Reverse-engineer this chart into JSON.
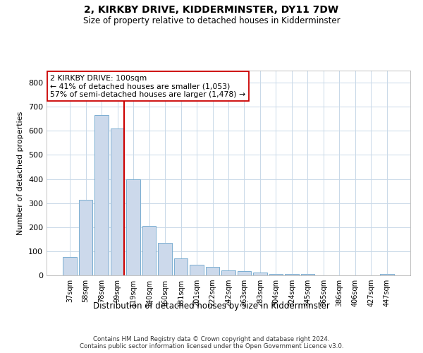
{
  "title": "2, KIRKBY DRIVE, KIDDERMINSTER, DY11 7DW",
  "subtitle": "Size of property relative to detached houses in Kidderminster",
  "xlabel": "Distribution of detached houses by size in Kidderminster",
  "ylabel": "Number of detached properties",
  "footer_line1": "Contains HM Land Registry data © Crown copyright and database right 2024.",
  "footer_line2": "Contains public sector information licensed under the Open Government Licence v3.0.",
  "annotation_title": "2 KIRKBY DRIVE: 100sqm",
  "annotation_line1": "← 41% of detached houses are smaller (1,053)",
  "annotation_line2": "57% of semi-detached houses are larger (1,478) →",
  "bar_color": "#ccd9eb",
  "bar_edge_color": "#7baed1",
  "vline_color": "#cc0000",
  "annotation_box_edge": "#cc0000",
  "background_color": "#ffffff",
  "grid_color": "#c8d8e8",
  "categories": [
    "37sqm",
    "58sqm",
    "78sqm",
    "99sqm",
    "119sqm",
    "140sqm",
    "160sqm",
    "181sqm",
    "201sqm",
    "222sqm",
    "242sqm",
    "263sqm",
    "283sqm",
    "304sqm",
    "324sqm",
    "345sqm",
    "365sqm",
    "386sqm",
    "406sqm",
    "427sqm",
    "447sqm"
  ],
  "values": [
    75,
    315,
    665,
    610,
    400,
    205,
    135,
    70,
    45,
    35,
    20,
    18,
    12,
    5,
    5,
    5,
    0,
    0,
    0,
    0,
    7
  ],
  "ylim": [
    0,
    850
  ],
  "yticks": [
    0,
    100,
    200,
    300,
    400,
    500,
    600,
    700,
    800
  ],
  "vline_x_index": 3,
  "figsize": [
    6.0,
    5.0
  ],
  "dpi": 100
}
